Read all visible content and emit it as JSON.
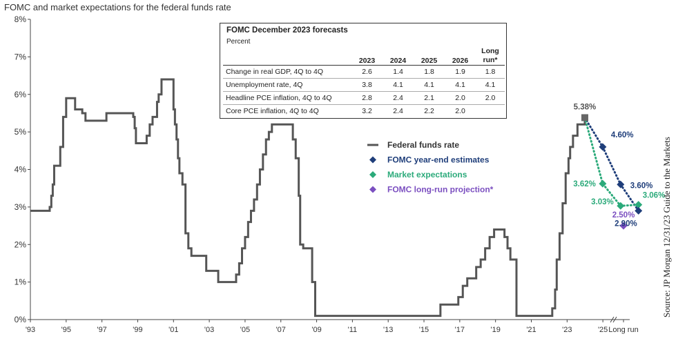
{
  "title": "FOMC and market expectations for the federal funds rate",
  "source": "Source: JP Morgan 12/31/23 Guide to the Markets",
  "table": {
    "title": "FOMC December 2023 forecasts",
    "subtitle": "Percent",
    "columns": [
      "2023",
      "2024",
      "2025",
      "2026",
      "Long run*"
    ],
    "rows": [
      {
        "label": "Change in real GDP, 4Q to 4Q",
        "values": [
          "2.6",
          "1.4",
          "1.8",
          "1.9",
          "1.8"
        ]
      },
      {
        "label": "Unemployment rate, 4Q",
        "values": [
          "3.8",
          "4.1",
          "4.1",
          "4.1",
          "4.1"
        ]
      },
      {
        "label": "Headline PCE inflation, 4Q to 4Q",
        "values": [
          "2.8",
          "2.4",
          "2.1",
          "2.0",
          "2.0"
        ]
      },
      {
        "label": "Core PCE inflation, 4Q to 4Q",
        "values": [
          "3.2",
          "2.4",
          "2.2",
          "2.0",
          ""
        ]
      }
    ]
  },
  "colors": {
    "fed_funds": "#555555",
    "fomc": "#1F3E7A",
    "market": "#2BAA7A",
    "longrun": "#7B4FC0",
    "axis": "#444444"
  },
  "chart_data": {
    "type": "line",
    "title": "FOMC and market expectations for the federal funds rate",
    "ylim": [
      0,
      8
    ],
    "y_tick_labels": [
      "0%",
      "1%",
      "2%",
      "3%",
      "4%",
      "5%",
      "6%",
      "7%",
      "8%"
    ],
    "x_tick_labels": [
      "'93",
      "'95",
      "'97",
      "'99",
      "'01",
      "'03",
      "'05",
      "'07",
      "'09",
      "'11",
      "'13",
      "'15",
      "'17",
      "'19",
      "'21",
      "'23",
      "'25",
      "Long run"
    ],
    "x_range": [
      1993,
      2026.5
    ],
    "grid": false,
    "legend": {
      "position": "center-right",
      "entries": [
        {
          "label": "Federal funds rate",
          "marker": "line",
          "color_key": "fed_funds"
        },
        {
          "label": "FOMC year-end estimates",
          "marker": "diamond",
          "color_key": "fomc"
        },
        {
          "label": "Market expectations",
          "marker": "diamond",
          "color_key": "market"
        },
        {
          "label": "FOMC long-run projection*",
          "marker": "diamond",
          "color_key": "longrun"
        }
      ]
    },
    "series": [
      {
        "name": "Federal funds rate",
        "x": [
          1993.0,
          1994.08,
          1994.17,
          1994.25,
          1994.33,
          1994.67,
          1994.83,
          1995.0,
          1995.5,
          1995.9,
          1996.08,
          1997.25,
          1998.75,
          1998.83,
          1998.9,
          1999.5,
          1999.67,
          1999.83,
          2000.08,
          2000.17,
          2000.33,
          2001.0,
          2001.08,
          2001.17,
          2001.25,
          2001.33,
          2001.5,
          2001.67,
          2001.83,
          2002.0,
          2002.83,
          2003.5,
          2004.5,
          2004.67,
          2004.83,
          2005.0,
          2005.17,
          2005.33,
          2005.5,
          2005.67,
          2005.83,
          2006.0,
          2006.17,
          2006.33,
          2006.5,
          2007.67,
          2007.83,
          2008.0,
          2008.08,
          2008.25,
          2008.75,
          2008.92,
          2015.92,
          2016.92,
          2017.17,
          2017.42,
          2017.92,
          2018.17,
          2018.42,
          2018.67,
          2018.92,
          2019.5,
          2019.67,
          2019.83,
          2020.17,
          2022.17,
          2022.33,
          2022.42,
          2022.58,
          2022.75,
          2022.92,
          2023.08,
          2023.17,
          2023.33,
          2023.58,
          2023.99
        ],
        "y": [
          2.9,
          3.0,
          3.3,
          3.6,
          4.1,
          4.6,
          5.4,
          5.9,
          5.6,
          5.5,
          5.3,
          5.5,
          5.4,
          5.1,
          4.7,
          4.9,
          5.2,
          5.4,
          5.8,
          6.0,
          6.4,
          5.6,
          5.2,
          4.8,
          4.3,
          3.9,
          3.6,
          2.3,
          1.9,
          1.7,
          1.3,
          1.0,
          1.2,
          1.5,
          1.9,
          2.2,
          2.6,
          2.9,
          3.2,
          3.6,
          4.0,
          4.4,
          4.8,
          5.0,
          5.2,
          4.8,
          4.3,
          3.3,
          2.0,
          1.9,
          1.0,
          0.1,
          0.4,
          0.6,
          0.9,
          1.1,
          1.4,
          1.6,
          1.9,
          2.2,
          2.4,
          2.2,
          1.9,
          1.6,
          0.1,
          0.3,
          0.8,
          1.6,
          2.3,
          3.1,
          3.9,
          4.3,
          4.6,
          4.9,
          5.2,
          5.38
        ]
      },
      {
        "name": "FOMC year-end estimates",
        "x": [
          2023.99,
          2024.99,
          2025.99,
          2026.99
        ],
        "y": [
          5.38,
          4.6,
          3.6,
          2.9
        ],
        "labels": [
          "5.38%",
          "4.60%",
          "3.60%",
          "2.90%"
        ]
      },
      {
        "name": "Market expectations",
        "x": [
          2023.99,
          2024.99,
          2025.99,
          2026.99
        ],
        "y": [
          5.38,
          3.62,
          3.03,
          3.06
        ],
        "labels": [
          "",
          "3.62%",
          "3.03%",
          "3.06%"
        ]
      },
      {
        "name": "FOMC long-run projection*",
        "x": [
          "Long run"
        ],
        "y": [
          2.5
        ],
        "labels": [
          "2.50%"
        ]
      }
    ]
  }
}
